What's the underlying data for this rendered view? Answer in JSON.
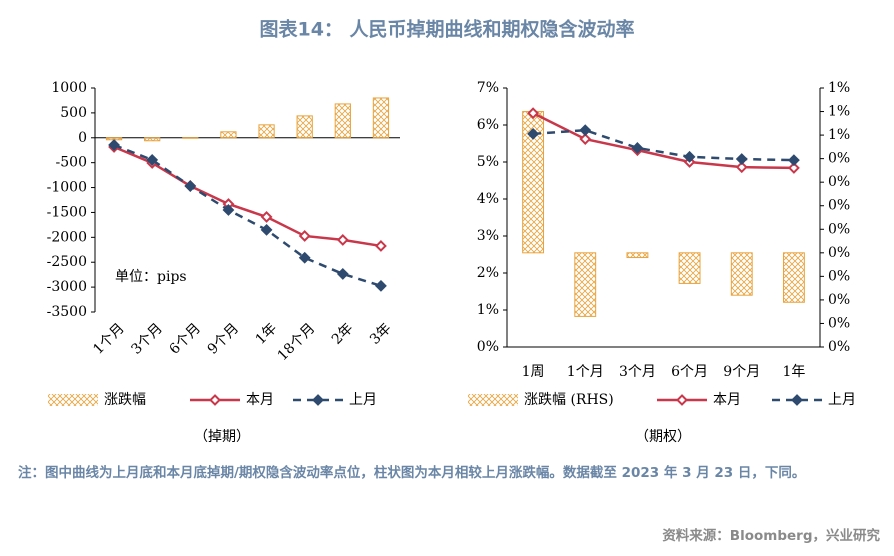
{
  "title": "图表14： 人民币掉期曲线和期权隐含波动率",
  "chart_data": [
    {
      "type": "bar-line",
      "caption": "（掉期）",
      "annotation": "单位：pips",
      "categories": [
        "1个月",
        "3个月",
        "6个月",
        "9个月",
        "1年",
        "18个月",
        "2年",
        "3年"
      ],
      "ylim": [
        -3500,
        1000
      ],
      "yticks": [
        -3500,
        -3000,
        -2500,
        -2000,
        -1500,
        -1000,
        -500,
        0,
        500,
        1000
      ],
      "series": [
        {
          "name": "涨跌幅",
          "type": "bar",
          "color": "#e8a33d",
          "values": [
            -40,
            -60,
            -10,
            120,
            260,
            440,
            680,
            800
          ]
        },
        {
          "name": "本月",
          "type": "line",
          "color": "#c9374a",
          "dashed": false,
          "values": [
            -185,
            -506,
            -968,
            -1330,
            -1590,
            -1972,
            -2052,
            -2173
          ]
        },
        {
          "name": "上月",
          "type": "line",
          "color": "#2e4a6e",
          "dashed": true,
          "values": [
            -145,
            -445,
            -970,
            -1450,
            -1850,
            -2410,
            -2735,
            -2975
          ]
        }
      ]
    },
    {
      "type": "bar-line",
      "caption": "（期权）",
      "categories": [
        "1周",
        "1个月",
        "3个月",
        "6个月",
        "9个月",
        "1年"
      ],
      "ylim": [
        0,
        7
      ],
      "yticks": [
        {
          "value": 0,
          "label": "0%"
        },
        {
          "value": 1,
          "label": "1%"
        },
        {
          "value": 2,
          "label": "2%"
        },
        {
          "value": 3,
          "label": "3%"
        },
        {
          "value": 4,
          "label": "4%"
        },
        {
          "value": 5,
          "label": "5%"
        },
        {
          "value": 6,
          "label": "6%"
        },
        {
          "value": 7,
          "label": "7%"
        }
      ],
      "y2lim": [
        -0.4,
        0.7
      ],
      "y2ticks": [
        {
          "value": -0.4,
          "label": "0%"
        },
        {
          "value": -0.3,
          "label": "0%"
        },
        {
          "value": -0.2,
          "label": "0%"
        },
        {
          "value": -0.1,
          "label": "0%"
        },
        {
          "value": 0,
          "label": "0%"
        },
        {
          "value": 0.1,
          "label": "0%"
        },
        {
          "value": 0.2,
          "label": "0%"
        },
        {
          "value": 0.3,
          "label": "0%"
        },
        {
          "value": 0.4,
          "label": "0%"
        },
        {
          "value": 0.5,
          "label": "1%"
        },
        {
          "value": 0.6,
          "label": "1%"
        },
        {
          "value": 0.7,
          "label": "1%"
        }
      ],
      "series": [
        {
          "name": "涨跌幅 (RHS)",
          "type": "bar",
          "axis": "y2",
          "color": "#e8a33d",
          "values": [
            0.6,
            -0.27,
            -0.02,
            -0.13,
            -0.18,
            -0.21
          ]
        },
        {
          "name": "本月",
          "type": "line",
          "color": "#c9374a",
          "dashed": false,
          "values": [
            6.32,
            5.62,
            5.32,
            5.0,
            4.86,
            4.84
          ]
        },
        {
          "name": "上月",
          "type": "line",
          "color": "#2e4a6e",
          "dashed": true,
          "values": [
            5.76,
            5.86,
            5.38,
            5.14,
            5.08,
            5.05
          ]
        }
      ]
    }
  ],
  "note": "注：图中曲线为上月底和本月底掉期/期权隐含波动率点位，柱状图为本月相较上月涨跌幅。数据截至 2023 年 3 月 23 日，下同。",
  "source": "资料来源：Bloomberg，兴业研究"
}
